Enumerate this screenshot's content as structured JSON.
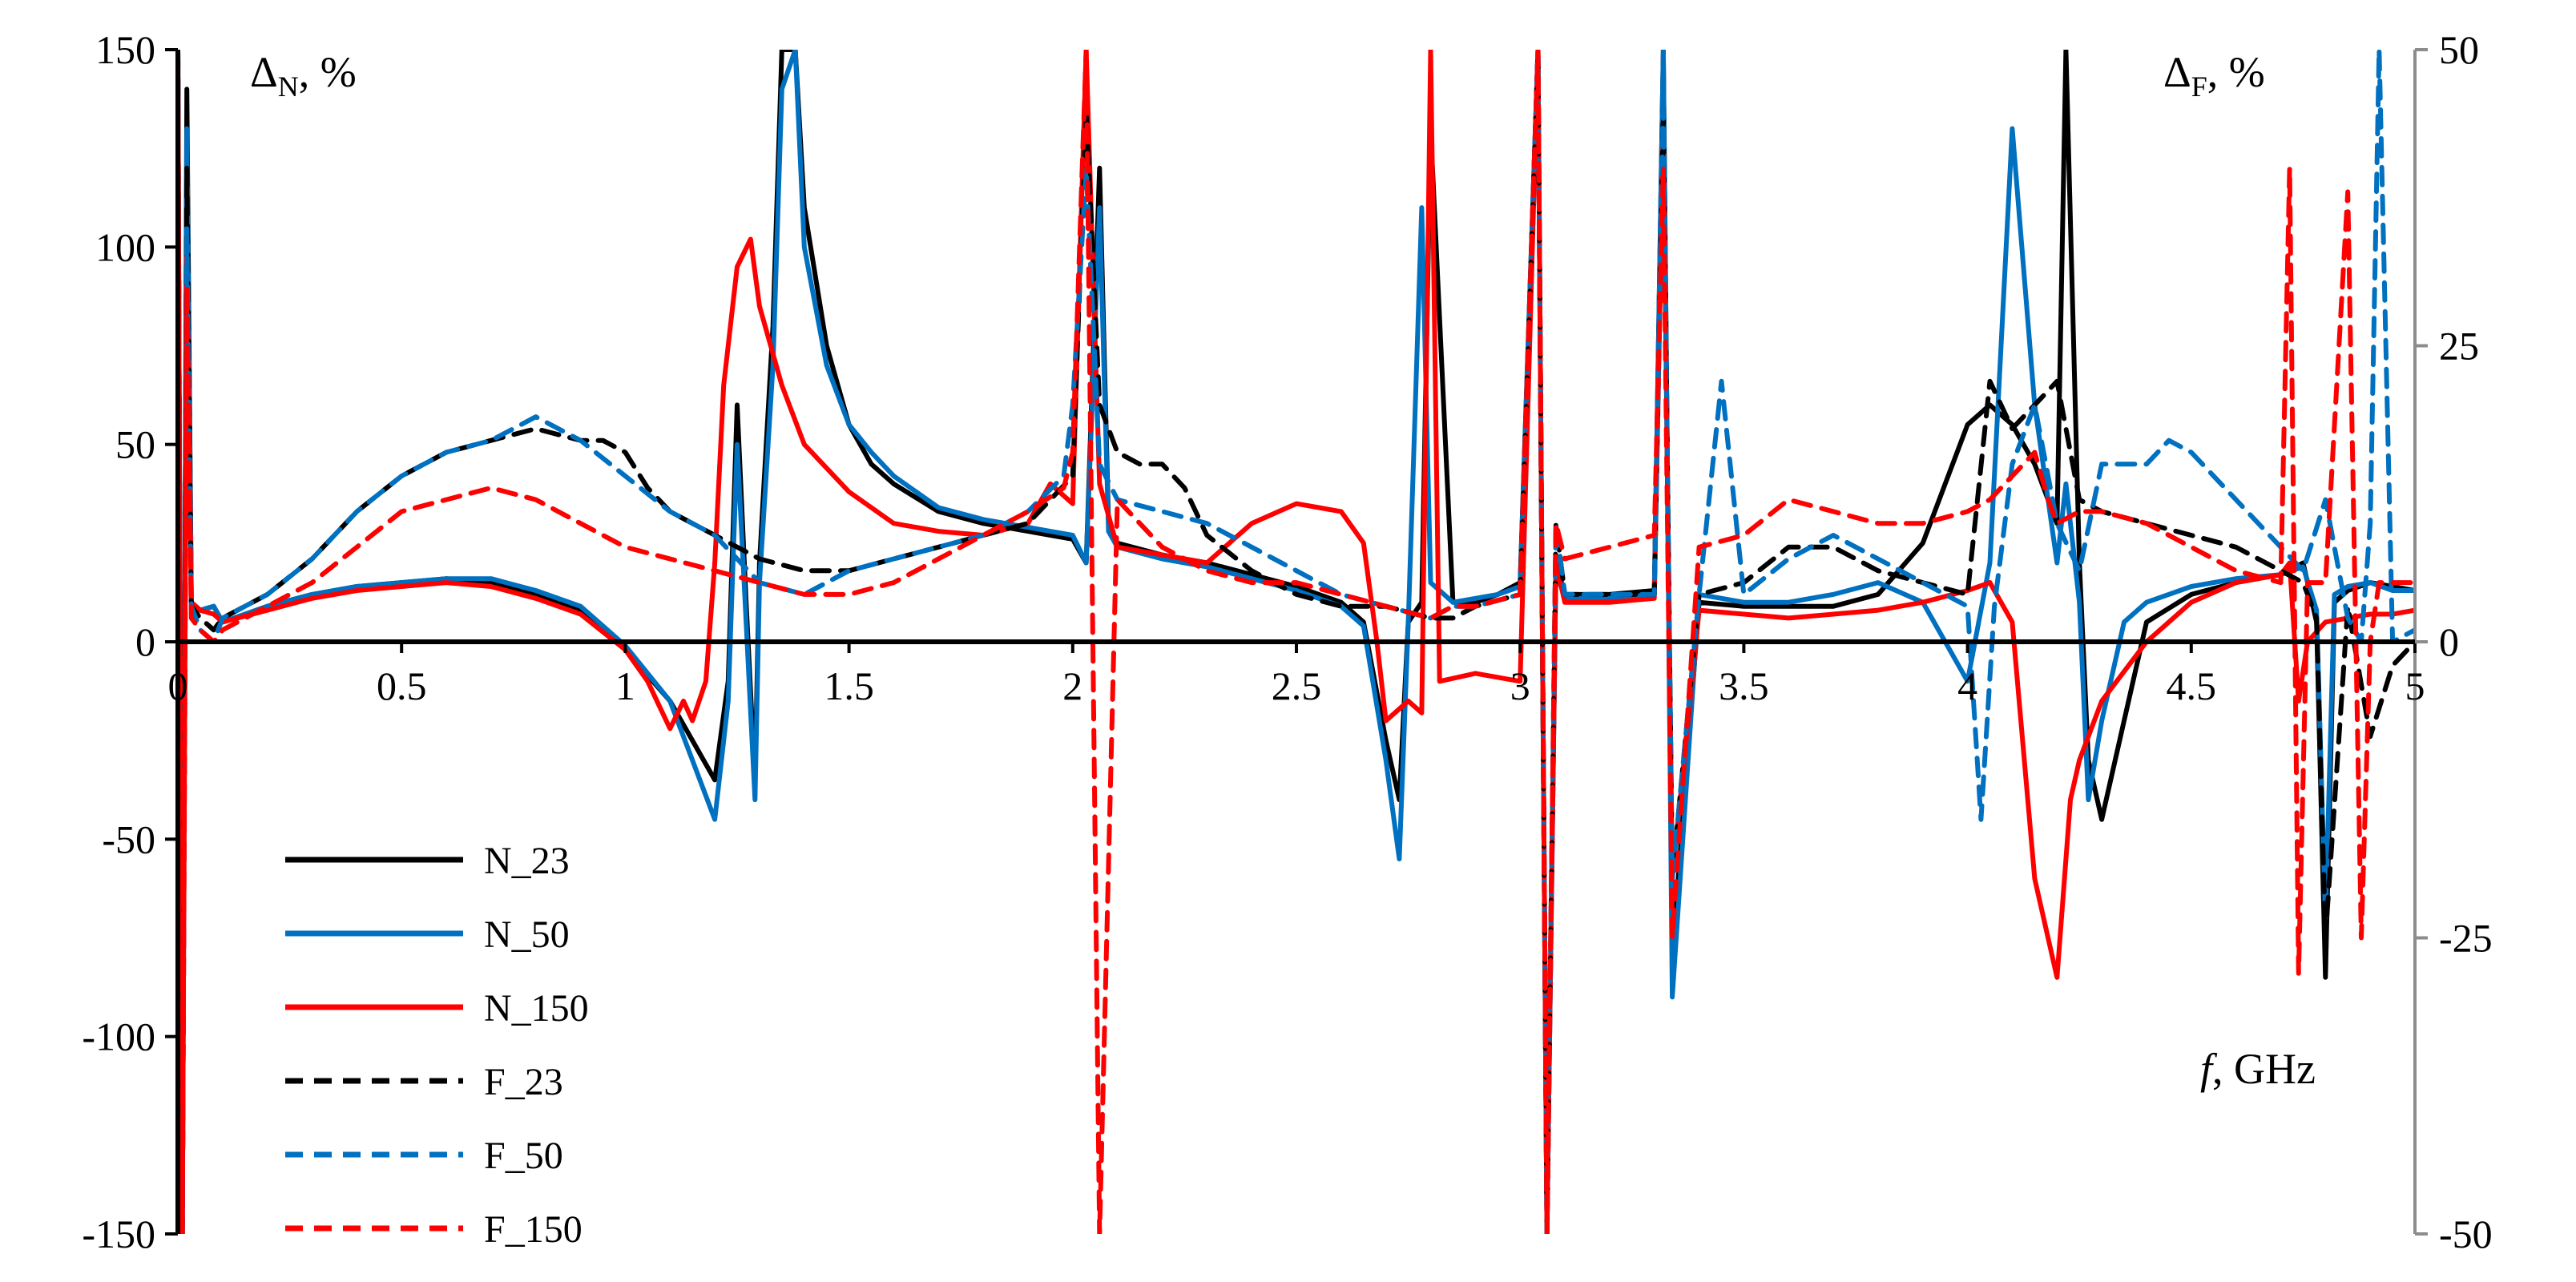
{
  "chart_data": {
    "type": "line",
    "left_axis_title": {
      "main": "Δ",
      "sub": "N",
      "rest": ", %"
    },
    "right_axis_title": {
      "main": "Δ",
      "sub": "F",
      "rest": ", %"
    },
    "x_axis_title": {
      "italic": "f",
      "rest": ", GHz"
    },
    "xlim": [
      0,
      5
    ],
    "ylim_left": [
      -150,
      150
    ],
    "ylim_right": [
      -50,
      50
    ],
    "x_ticks": [
      "0",
      "0.5",
      "1",
      "1.5",
      "2",
      "2.5",
      "3",
      "3.5",
      "4",
      "4.5",
      "5"
    ],
    "y_left_ticks": [
      "150",
      "100",
      "50",
      "0",
      "-50",
      "-100",
      "-150"
    ],
    "y_right_ticks": [
      "50",
      "25",
      "0",
      "-25",
      "-50"
    ],
    "grid": false,
    "legend_position": "bottom-left",
    "series": [
      {
        "name": "N_23",
        "axis": "left",
        "color": "#000000",
        "dash": "solid",
        "x": [
          0,
          0.01,
          0.02,
          0.03,
          0.05,
          0.08,
          0.1,
          0.2,
          0.3,
          0.4,
          0.5,
          0.6,
          0.7,
          0.8,
          0.9,
          1.0,
          1.1,
          1.15,
          1.2,
          1.23,
          1.25,
          1.27,
          1.29,
          1.3,
          1.33,
          1.35,
          1.38,
          1.4,
          1.45,
          1.5,
          1.55,
          1.6,
          1.7,
          1.8,
          1.9,
          1.95,
          2.0,
          2.03,
          2.06,
          2.08,
          2.1,
          2.2,
          2.3,
          2.4,
          2.5,
          2.6,
          2.65,
          2.7,
          2.73,
          2.75,
          2.78,
          2.8,
          2.85,
          2.9,
          2.95,
          3.0,
          3.04,
          3.06,
          3.08,
          3.1,
          3.2,
          3.3,
          3.32,
          3.34,
          3.4,
          3.5,
          3.6,
          3.7,
          3.8,
          3.9,
          4.0,
          4.05,
          4.1,
          4.15,
          4.2,
          4.22,
          4.25,
          4.27,
          4.3,
          4.35,
          4.4,
          4.5,
          4.6,
          4.7,
          4.75,
          4.78,
          4.8,
          4.82,
          4.85,
          4.9,
          4.95,
          5.0
        ],
        "y": [
          150,
          -150,
          140,
          10,
          8,
          9,
          5,
          9,
          12,
          14,
          15,
          16,
          15,
          12,
          8,
          -2,
          -15,
          -25,
          -35,
          -10,
          60,
          10,
          -35,
          20,
          80,
          150,
          150,
          110,
          75,
          55,
          45,
          40,
          33,
          30,
          28,
          27,
          26,
          20,
          120,
          30,
          25,
          22,
          20,
          17,
          14,
          10,
          5,
          -25,
          -40,
          5,
          10,
          130,
          10,
          10,
          12,
          15,
          150,
          -150,
          20,
          12,
          12,
          13,
          150,
          -80,
          10,
          9,
          9,
          9,
          12,
          25,
          55,
          60,
          55,
          45,
          30,
          150,
          20,
          -30,
          -45,
          -20,
          5,
          12,
          15,
          17,
          20,
          5,
          -85,
          10,
          13,
          15,
          14,
          13
        ]
      },
      {
        "name": "N_50",
        "axis": "left",
        "color": "#0070c0",
        "dash": "solid",
        "x": [
          0,
          0.01,
          0.02,
          0.03,
          0.05,
          0.08,
          0.1,
          0.2,
          0.3,
          0.4,
          0.5,
          0.6,
          0.7,
          0.8,
          0.9,
          1.0,
          1.1,
          1.15,
          1.2,
          1.23,
          1.25,
          1.27,
          1.29,
          1.3,
          1.33,
          1.35,
          1.38,
          1.4,
          1.45,
          1.5,
          1.55,
          1.6,
          1.7,
          1.8,
          1.9,
          1.95,
          2.0,
          2.03,
          2.06,
          2.08,
          2.1,
          2.2,
          2.3,
          2.4,
          2.5,
          2.6,
          2.65,
          2.7,
          2.73,
          2.75,
          2.78,
          2.8,
          2.85,
          2.9,
          2.95,
          3.0,
          3.04,
          3.06,
          3.08,
          3.1,
          3.2,
          3.3,
          3.32,
          3.34,
          3.4,
          3.5,
          3.6,
          3.7,
          3.8,
          3.9,
          4.0,
          4.05,
          4.1,
          4.15,
          4.2,
          4.22,
          4.25,
          4.27,
          4.3,
          4.35,
          4.4,
          4.5,
          4.6,
          4.7,
          4.75,
          4.78,
          4.8,
          4.82,
          4.85,
          4.9,
          4.95,
          5.0
        ],
        "y": [
          150,
          -150,
          130,
          10,
          8,
          9,
          5,
          9,
          12,
          14,
          15,
          16,
          16,
          13,
          9,
          -1,
          -15,
          -30,
          -45,
          -15,
          50,
          5,
          -40,
          15,
          70,
          140,
          150,
          100,
          70,
          55,
          48,
          42,
          34,
          31,
          29,
          28,
          27,
          20,
          110,
          28,
          24,
          21,
          19,
          16,
          13,
          9,
          4,
          -30,
          -55,
          5,
          110,
          15,
          10,
          11,
          12,
          14,
          150,
          -150,
          18,
          11,
          11,
          12,
          150,
          -90,
          12,
          10,
          10,
          12,
          15,
          10,
          -10,
          20,
          130,
          60,
          20,
          40,
          10,
          -40,
          -20,
          5,
          10,
          14,
          16,
          17,
          19,
          8,
          -70,
          12,
          14,
          15,
          13,
          13
        ]
      },
      {
        "name": "N_150",
        "axis": "left",
        "color": "#ff0000",
        "dash": "solid",
        "x": [
          0,
          0.01,
          0.02,
          0.03,
          0.05,
          0.08,
          0.1,
          0.2,
          0.3,
          0.4,
          0.5,
          0.6,
          0.7,
          0.8,
          0.9,
          1.0,
          1.05,
          1.1,
          1.13,
          1.15,
          1.18,
          1.2,
          1.22,
          1.25,
          1.28,
          1.3,
          1.35,
          1.4,
          1.5,
          1.6,
          1.7,
          1.8,
          1.9,
          1.95,
          2.0,
          2.03,
          2.06,
          2.1,
          2.2,
          2.3,
          2.4,
          2.5,
          2.6,
          2.65,
          2.68,
          2.7,
          2.75,
          2.78,
          2.8,
          2.82,
          2.9,
          3.0,
          3.04,
          3.06,
          3.08,
          3.1,
          3.2,
          3.3,
          3.32,
          3.34,
          3.4,
          3.5,
          3.6,
          3.7,
          3.8,
          3.9,
          4.0,
          4.05,
          4.1,
          4.15,
          4.18,
          4.2,
          4.23,
          4.25,
          4.3,
          4.4,
          4.5,
          4.6,
          4.7,
          4.72,
          4.74,
          4.76,
          4.8,
          4.85,
          4.9,
          4.95,
          5.0
        ],
        "y": [
          150,
          -150,
          100,
          10,
          8,
          7,
          5,
          8,
          11,
          13,
          14,
          15,
          14,
          11,
          7,
          -2,
          -10,
          -22,
          -15,
          -20,
          -10,
          20,
          65,
          95,
          102,
          85,
          65,
          50,
          38,
          30,
          28,
          27,
          30,
          40,
          35,
          150,
          40,
          24,
          22,
          20,
          30,
          35,
          33,
          25,
          0,
          -20,
          -15,
          -18,
          150,
          -10,
          -8,
          -10,
          150,
          -150,
          20,
          10,
          10,
          11,
          130,
          -60,
          8,
          7,
          6,
          7,
          8,
          10,
          13,
          15,
          5,
          -60,
          -75,
          -85,
          -40,
          -30,
          -15,
          0,
          10,
          15,
          17,
          20,
          -15,
          0,
          5,
          6,
          7,
          7,
          8
        ]
      },
      {
        "name": "F_23",
        "axis": "right",
        "color": "#000000",
        "dash": "dashed",
        "x": [
          0,
          0.01,
          0.02,
          0.03,
          0.05,
          0.08,
          0.1,
          0.2,
          0.3,
          0.4,
          0.5,
          0.6,
          0.7,
          0.8,
          0.9,
          0.95,
          1.0,
          1.05,
          1.1,
          1.2,
          1.3,
          1.4,
          1.5,
          1.6,
          1.7,
          1.8,
          1.9,
          2.0,
          2.03,
          2.06,
          2.1,
          2.15,
          2.2,
          2.25,
          2.3,
          2.4,
          2.5,
          2.6,
          2.7,
          2.8,
          2.85,
          2.9,
          3.0,
          3.04,
          3.06,
          3.08,
          3.1,
          3.2,
          3.3,
          3.32,
          3.34,
          3.4,
          3.5,
          3.6,
          3.7,
          3.8,
          3.9,
          4.0,
          4.05,
          4.1,
          4.15,
          4.2,
          4.25,
          4.3,
          4.4,
          4.5,
          4.6,
          4.7,
          4.75,
          4.78,
          4.8,
          4.85,
          4.9,
          4.95,
          5.0
        ],
        "y": [
          50,
          -50,
          40,
          3,
          2,
          1,
          2,
          4,
          7,
          11,
          14,
          16,
          17,
          18,
          17,
          17,
          16,
          13,
          11,
          9,
          7,
          6,
          6,
          7,
          8,
          9,
          10,
          14,
          45,
          20,
          16,
          15,
          15,
          13,
          9,
          6,
          4,
          3,
          3,
          2,
          2,
          3,
          4,
          50,
          -50,
          10,
          4,
          4,
          4,
          45,
          -20,
          4,
          5,
          8,
          8,
          6,
          5,
          4,
          22,
          18,
          20,
          22,
          12,
          11,
          10,
          9,
          8,
          6,
          5,
          2,
          -25,
          3,
          -8,
          -2,
          0
        ]
      },
      {
        "name": "F_50",
        "axis": "right",
        "color": "#0070c0",
        "dash": "dashed",
        "x": [
          0,
          0.01,
          0.02,
          0.03,
          0.05,
          0.08,
          0.1,
          0.2,
          0.3,
          0.4,
          0.5,
          0.6,
          0.7,
          0.75,
          0.8,
          0.9,
          1.0,
          1.1,
          1.2,
          1.3,
          1.4,
          1.5,
          1.6,
          1.7,
          1.8,
          1.9,
          1.98,
          2.0,
          2.03,
          2.06,
          2.1,
          2.2,
          2.3,
          2.4,
          2.5,
          2.6,
          2.7,
          2.8,
          2.85,
          2.9,
          3.0,
          3.04,
          3.06,
          3.08,
          3.1,
          3.2,
          3.3,
          3.32,
          3.34,
          3.4,
          3.45,
          3.5,
          3.6,
          3.7,
          3.8,
          3.9,
          4.0,
          4.03,
          4.06,
          4.1,
          4.15,
          4.2,
          4.25,
          4.3,
          4.4,
          4.45,
          4.5,
          4.6,
          4.7,
          4.75,
          4.8,
          4.85,
          4.88,
          4.9,
          4.92,
          4.95,
          5.0
        ],
        "y": [
          50,
          -50,
          35,
          3,
          1,
          0,
          2,
          4,
          7,
          11,
          14,
          16,
          17,
          18,
          19,
          17,
          14,
          11,
          9,
          5,
          4,
          6,
          7,
          8,
          9,
          11,
          14,
          20,
          40,
          15,
          12,
          11,
          10,
          8,
          6,
          4,
          3,
          2,
          3,
          3,
          4,
          50,
          -50,
          10,
          4,
          4,
          4,
          45,
          -20,
          4,
          22,
          4,
          7,
          9,
          7,
          5,
          3,
          -15,
          3,
          15,
          20,
          10,
          6,
          15,
          15,
          17,
          16,
          12,
          8,
          6,
          12,
          2,
          0,
          10,
          50,
          0,
          1
        ]
      },
      {
        "name": "F_150",
        "axis": "right",
        "color": "#ff0000",
        "dash": "dashed",
        "x": [
          0,
          0.01,
          0.02,
          0.03,
          0.05,
          0.08,
          0.1,
          0.2,
          0.3,
          0.4,
          0.5,
          0.6,
          0.7,
          0.8,
          0.9,
          1.0,
          1.1,
          1.2,
          1.3,
          1.4,
          1.5,
          1.6,
          1.7,
          1.8,
          1.9,
          1.98,
          2.0,
          2.03,
          2.06,
          2.1,
          2.2,
          2.3,
          2.4,
          2.5,
          2.6,
          2.7,
          2.8,
          2.85,
          2.9,
          3.0,
          3.04,
          3.06,
          3.08,
          3.1,
          3.2,
          3.3,
          3.32,
          3.34,
          3.4,
          3.5,
          3.6,
          3.7,
          3.8,
          3.9,
          4.0,
          4.05,
          4.1,
          4.15,
          4.18,
          4.2,
          4.25,
          4.3,
          4.4,
          4.5,
          4.6,
          4.7,
          4.72,
          4.74,
          4.76,
          4.8,
          4.85,
          4.88,
          4.9,
          4.92,
          4.95,
          5.0
        ],
        "y": [
          50,
          -50,
          30,
          2,
          1,
          0,
          1,
          3,
          5,
          8,
          11,
          12,
          13,
          12,
          10,
          8,
          7,
          6,
          5,
          4,
          4,
          5,
          7,
          9,
          11,
          13,
          16,
          50,
          -50,
          12,
          8,
          6,
          5,
          5,
          4,
          3,
          2,
          3,
          3,
          4,
          50,
          -50,
          10,
          7,
          8,
          9,
          40,
          -25,
          8,
          9,
          12,
          11,
          10,
          10,
          11,
          12,
          14,
          16,
          12,
          10,
          11,
          11,
          10,
          8,
          6,
          5,
          40,
          -28,
          5,
          5,
          38,
          -25,
          0,
          5,
          5,
          5
        ]
      }
    ]
  }
}
